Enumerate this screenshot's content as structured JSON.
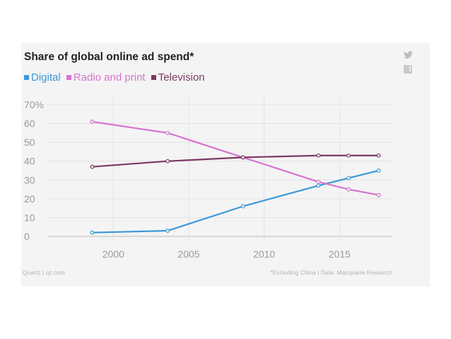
{
  "chart_data": {
    "type": "line",
    "title": "Share of global online ad spend*",
    "xlabel": "",
    "ylabel": "",
    "x": [
      1998.6,
      2003.6,
      2008.6,
      2013.6,
      2015.6,
      2017.6
    ],
    "xticks": [
      2000,
      2005,
      2010,
      2015
    ],
    "xlim": [
      1996,
      2018.5
    ],
    "ylim": [
      0,
      70
    ],
    "yticks": [
      0,
      10,
      20,
      30,
      40,
      50,
      60,
      70
    ],
    "ytick_labels": [
      "0",
      "10",
      "20",
      "30",
      "40",
      "50",
      "60",
      "70%"
    ],
    "grid": true,
    "legend_position": "top-left",
    "series": [
      {
        "name": "Digital",
        "color": "#3a9ad9",
        "values": [
          2,
          3,
          16,
          27,
          31,
          35
        ]
      },
      {
        "name": "Radio and print",
        "color": "#d674cf",
        "values": [
          61,
          55,
          42,
          29,
          25,
          22
        ]
      },
      {
        "name": "Television",
        "color": "#7a3a64",
        "values": [
          37,
          40,
          42,
          43,
          43,
          43
        ]
      }
    ]
  },
  "legend": [
    {
      "label": "Digital",
      "color": "#3a9ad9"
    },
    {
      "label": "Radio and print",
      "color": "#d674cf"
    },
    {
      "label": "Television",
      "color": "#7a3a64"
    }
  ],
  "icons": {
    "twitter": "twitter-icon",
    "facebook": "facebook-icon"
  },
  "footer": {
    "source": "Quartz | qz.com",
    "note": "*Excluding China | Data: Macquarie Research"
  }
}
